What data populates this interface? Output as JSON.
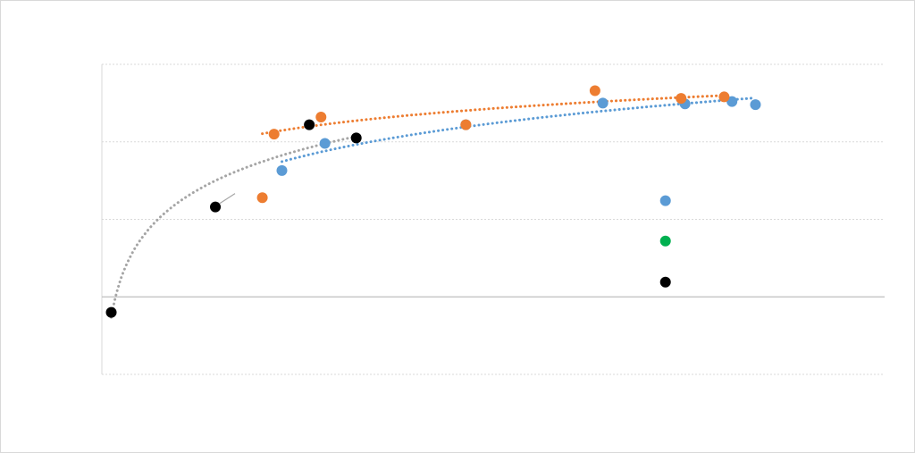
{
  "chart_data": {
    "type": "scatter",
    "title": "",
    "xlabel": "",
    "ylabel": "",
    "xlim": [
      0,
      100
    ],
    "ylim": [
      -1,
      3
    ],
    "grid": true,
    "colors": {
      "blue": "#5b9bd5",
      "orange": "#ed7d31",
      "black": "#000000",
      "green": "#00b050",
      "gray": "#a5a5a5"
    },
    "series": [
      {
        "color": "#5b9bd5",
        "points": [
          [
            23,
            1.63
          ],
          [
            28.5,
            1.98
          ],
          [
            46.5,
            2.22
          ],
          [
            64,
            2.5
          ],
          [
            74.5,
            2.49
          ],
          [
            80.5,
            2.52
          ],
          [
            83.5,
            2.48
          ],
          [
            72,
            1.24
          ]
        ]
      },
      {
        "color": "#ed7d31",
        "points": [
          [
            20.5,
            1.28
          ],
          [
            22,
            2.1
          ],
          [
            28,
            2.32
          ],
          [
            46.5,
            2.22
          ],
          [
            63,
            2.66
          ],
          [
            74,
            2.56
          ],
          [
            79.5,
            2.58
          ]
        ]
      },
      {
        "color": "#000000",
        "points": [
          [
            1.2,
            -0.2
          ],
          [
            14.5,
            1.16
          ],
          [
            26.5,
            2.22
          ],
          [
            32.5,
            2.05
          ],
          [
            72,
            0.19
          ]
        ]
      },
      {
        "color": "#00b050",
        "points": [
          [
            72,
            0.72
          ]
        ]
      }
    ],
    "trendlines": [
      {
        "type": "log",
        "color": "#a5a5a5",
        "x_range": [
          1.2,
          32.5
        ]
      },
      {
        "type": "log",
        "color": "#ed7d31",
        "x_range": [
          20.5,
          79.5
        ]
      },
      {
        "type": "log",
        "color": "#5b9bd5",
        "x_range": [
          23,
          83.5
        ]
      }
    ]
  }
}
